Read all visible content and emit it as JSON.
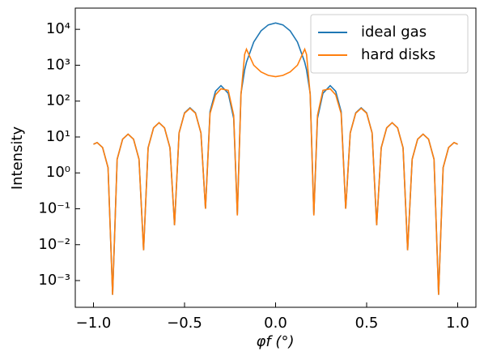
{
  "chart_data": {
    "type": "line",
    "xlabel": "φf (°)",
    "ylabel": "Intensity",
    "x": [
      -1.0,
      -0.98,
      -0.95,
      -0.92,
      -0.895,
      -0.87,
      -0.84,
      -0.81,
      -0.78,
      -0.75,
      -0.725,
      -0.7,
      -0.67,
      -0.64,
      -0.61,
      -0.58,
      -0.555,
      -0.53,
      -0.5,
      -0.47,
      -0.44,
      -0.41,
      -0.385,
      -0.36,
      -0.33,
      -0.3,
      -0.26,
      -0.23,
      -0.21,
      -0.19,
      -0.17,
      -0.16,
      -0.12,
      -0.08,
      -0.04,
      0,
      0.04,
      0.08,
      0.12,
      0.16,
      0.17,
      0.19,
      0.21,
      0.23,
      0.26,
      0.3,
      0.33,
      0.36,
      0.385,
      0.41,
      0.44,
      0.47,
      0.5,
      0.53,
      0.555,
      0.58,
      0.61,
      0.64,
      0.67,
      0.7,
      0.725,
      0.75,
      0.78,
      0.81,
      0.84,
      0.87,
      0.895,
      0.92,
      0.95,
      0.98,
      1.0
    ],
    "series": [
      {
        "name": "ideal gas",
        "color": "#1f77b4",
        "values": [
          6.3,
          7,
          5.1,
          1.4,
          0.0004,
          2.4,
          8.7,
          12,
          8.7,
          2.4,
          0.007,
          5.0,
          18,
          25,
          18,
          5.0,
          0.035,
          13,
          47,
          65,
          47,
          13,
          0.1,
          51,
          188,
          270,
          165,
          33,
          0.07,
          164,
          740,
          1210,
          4420,
          9080,
          13300,
          15000,
          13300,
          9080,
          4420,
          1210,
          740,
          164,
          0.07,
          33,
          165,
          270,
          188,
          51,
          0.1,
          13,
          47,
          65,
          47,
          13,
          0.035,
          5.0,
          18,
          25,
          18,
          5.0,
          0.007,
          2.4,
          8.7,
          12,
          8.7,
          2.4,
          0.0004,
          1.4,
          5.1,
          7,
          6.3
        ]
      },
      {
        "name": "hard disks",
        "color": "#ff7f0e",
        "values": [
          6.3,
          7,
          5.1,
          1.4,
          0.0004,
          2.4,
          8.7,
          12,
          8.7,
          2.4,
          0.007,
          5.0,
          18,
          25,
          18,
          5.0,
          0.035,
          13,
          46,
          63,
          46,
          13,
          0.1,
          45,
          150,
          220,
          200,
          40,
          0.065,
          150,
          2000,
          2800,
          1000,
          650,
          520,
          480,
          520,
          650,
          1000,
          2800,
          2000,
          150,
          0.065,
          40,
          200,
          220,
          150,
          45,
          0.1,
          13,
          46,
          63,
          46,
          13,
          0.035,
          5.0,
          18,
          25,
          18,
          5.0,
          0.007,
          2.4,
          8.7,
          12,
          8.7,
          2.4,
          0.0004,
          1.4,
          5.1,
          7,
          6.3
        ]
      }
    ],
    "xlim": [
      -1.1,
      1.1
    ],
    "xticks": [
      {
        "value": -1,
        "label": "−1.0"
      },
      {
        "value": -0.5,
        "label": "−0.5"
      },
      {
        "value": 0,
        "label": "0.0"
      },
      0.5,
      {
        "value": 1,
        "label": "1.0"
      }
    ],
    "ylim": [
      0.00018,
      39000
    ],
    "ylog": true,
    "yticks": [
      {
        "value": 0.001,
        "label": "10⁻³"
      },
      {
        "value": 0.01,
        "label": "10⁻²"
      },
      {
        "value": 0.1,
        "label": "10⁻¹"
      },
      {
        "value": 1,
        "label": "10⁰"
      },
      {
        "value": 10,
        "label": "10¹"
      },
      {
        "value": 100,
        "label": "10²"
      },
      {
        "value": 1000,
        "label": "10³"
      },
      {
        "value": 10000,
        "label": "10⁴"
      }
    ],
    "legend": "upper right"
  }
}
